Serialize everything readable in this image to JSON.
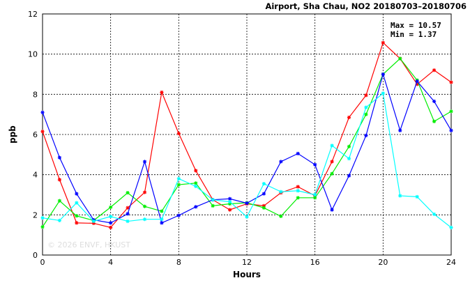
{
  "chart_data": {
    "type": "line",
    "title": "Airport, Sha Chau, NO2 20180703–20180706",
    "xlabel": "Hours",
    "ylabel": "ppb",
    "xlim": [
      0,
      24
    ],
    "ylim": [
      0,
      12
    ],
    "xticks": [
      "0",
      "4",
      "8",
      "12",
      "16",
      "20",
      "24"
    ],
    "yticks": [
      "0",
      "2",
      "4",
      "6",
      "8",
      "10",
      "12"
    ],
    "grid": true,
    "stats": {
      "max_label": "Max = 10.57",
      "min_label": "Min =  1.37"
    },
    "watermark": "© 2026  ENVF, HKUST",
    "x": [
      0,
      1,
      2,
      3,
      4,
      5,
      6,
      7,
      8,
      9,
      10,
      11,
      12,
      13,
      14,
      15,
      16,
      17,
      18,
      19,
      20,
      21,
      22,
      23,
      24
    ],
    "series": [
      {
        "color": "#ff0000",
        "values": [
          6.15,
          3.75,
          1.6,
          1.58,
          1.37,
          2.35,
          3.12,
          8.1,
          6.05,
          4.2,
          2.75,
          2.25,
          2.55,
          2.45,
          3.1,
          3.4,
          2.95,
          4.65,
          6.85,
          7.95,
          10.57,
          9.78,
          8.5,
          9.2,
          8.6
        ]
      },
      {
        "color": "#00ee00",
        "values": [
          1.4,
          2.7,
          1.95,
          1.72,
          2.38,
          3.1,
          2.42,
          2.18,
          3.5,
          3.58,
          2.45,
          2.55,
          2.6,
          2.35,
          1.93,
          2.85,
          2.85,
          4.05,
          5.4,
          7.0,
          9.0,
          9.78,
          8.7,
          6.65,
          7.15
        ]
      },
      {
        "color": "#0000ff",
        "values": [
          7.1,
          4.85,
          3.05,
          1.75,
          1.6,
          2.05,
          4.65,
          1.6,
          1.97,
          2.4,
          2.75,
          2.8,
          2.58,
          3.05,
          4.65,
          5.05,
          4.5,
          2.25,
          3.95,
          5.95,
          9.0,
          6.2,
          8.65,
          7.65,
          6.2
        ]
      },
      {
        "color": "#00ffff",
        "values": [
          1.85,
          1.72,
          2.6,
          1.68,
          1.92,
          1.68,
          1.78,
          1.78,
          3.8,
          3.42,
          2.75,
          2.65,
          1.9,
          3.55,
          3.15,
          3.2,
          3.0,
          5.45,
          4.8,
          7.35,
          8.05,
          2.95,
          2.9,
          2.03,
          1.37
        ]
      }
    ]
  }
}
